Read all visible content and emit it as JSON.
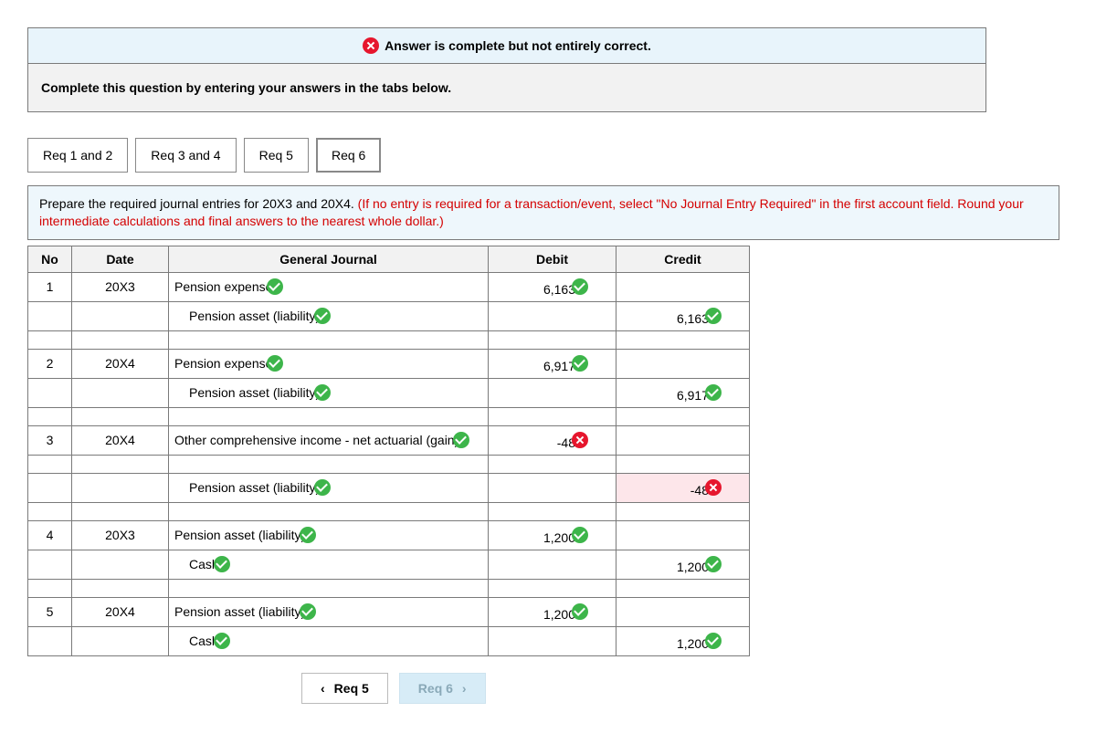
{
  "status_banner": "Answer is complete but not entirely correct.",
  "instruction_banner": "Complete this question by entering your answers in the tabs below.",
  "tabs": [
    {
      "label": "Req 1 and 2",
      "active": false
    },
    {
      "label": "Req 3 and 4",
      "active": false
    },
    {
      "label": "Req 5",
      "active": false
    },
    {
      "label": "Req 6",
      "active": true
    }
  ],
  "prompt_plain": "Prepare the required journal entries for 20X3 and 20X4. ",
  "prompt_red": "(If no entry is required for a transaction/event, select \"No Journal Entry Required\" in the first account field. Round your intermediate calculations and final answers to the nearest whole dollar.)",
  "table": {
    "headers": {
      "no": "No",
      "date": "Date",
      "gj": "General Journal",
      "debit": "Debit",
      "credit": "Credit"
    },
    "col_widths": {
      "no": 48,
      "date": 106,
      "gj": 350,
      "debit": 140,
      "credit": 146
    },
    "rows": [
      {
        "no": "1",
        "date": "20X3",
        "account": "Pension expense",
        "indent": false,
        "acc_mark": "check",
        "debit": "6,163",
        "debit_mark": "check",
        "credit": "",
        "credit_mark": null
      },
      {
        "no": "",
        "date": "",
        "account": "Pension asset (liability)",
        "indent": true,
        "acc_mark": "check",
        "debit": "",
        "debit_mark": null,
        "credit": "6,163",
        "credit_mark": "check"
      },
      {
        "spacer": true
      },
      {
        "no": "2",
        "date": "20X4",
        "account": "Pension expense",
        "indent": false,
        "acc_mark": "check",
        "debit": "6,917",
        "debit_mark": "check",
        "credit": "",
        "credit_mark": null
      },
      {
        "no": "",
        "date": "",
        "account": "Pension asset (liability)",
        "indent": true,
        "acc_mark": "check",
        "debit": "",
        "debit_mark": null,
        "credit": "6,917",
        "credit_mark": "check"
      },
      {
        "spacer": true
      },
      {
        "no": "3",
        "date": "20X4",
        "account": "Other comprehensive income - net actuarial (gain)",
        "indent": false,
        "acc_mark": "check",
        "debit": "-48",
        "debit_mark": "x",
        "credit": "",
        "credit_mark": null
      },
      {
        "spacer": true
      },
      {
        "no": "",
        "date": "",
        "account": "Pension asset (liability)",
        "indent": true,
        "acc_mark": "check",
        "debit": "",
        "debit_mark": null,
        "credit": "-48",
        "credit_mark": "x",
        "credit_pink": true
      },
      {
        "spacer": true
      },
      {
        "no": "4",
        "date": "20X3",
        "account": "Pension asset (liability)",
        "indent": false,
        "acc_mark": "check",
        "debit": "1,200",
        "debit_mark": "check",
        "credit": "",
        "credit_mark": null
      },
      {
        "no": "",
        "date": "",
        "account": "Cash",
        "indent": true,
        "acc_mark": "check",
        "debit": "",
        "debit_mark": null,
        "credit": "1,200",
        "credit_mark": "check"
      },
      {
        "spacer": true
      },
      {
        "no": "5",
        "date": "20X4",
        "account": "Pension asset (liability)",
        "indent": false,
        "acc_mark": "check",
        "debit": "1,200",
        "debit_mark": "check",
        "credit": "",
        "credit_mark": null
      },
      {
        "no": "",
        "date": "",
        "account": "Cash",
        "indent": true,
        "acc_mark": "check",
        "debit": "",
        "debit_mark": null,
        "credit": "1,200",
        "credit_mark": "check"
      }
    ]
  },
  "nav": {
    "prev": "Req 5",
    "next": "Req 6"
  }
}
